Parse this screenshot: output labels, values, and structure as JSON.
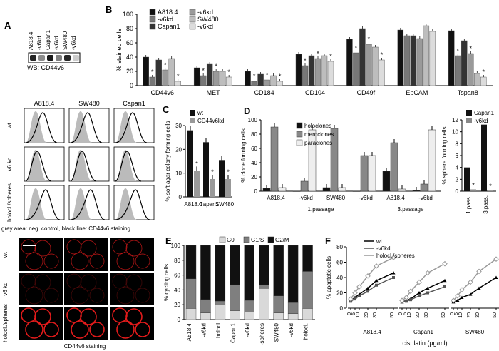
{
  "panel_labels": {
    "A": "A",
    "B": "B",
    "C": "C",
    "D": "D",
    "E": "E",
    "F": "F"
  },
  "panelA": {
    "lanes": [
      "A818.4",
      "-v6kd",
      "Capan1",
      "-v6kd",
      "SW480",
      "-v6kd"
    ],
    "caption": "WB: CD44v6",
    "band_intensity": [
      0.85,
      0.45,
      0.9,
      0.5,
      0.85,
      0.2
    ]
  },
  "flow": {
    "cols": [
      "A818.4",
      "SW480",
      "Capan1"
    ],
    "rows": [
      "wt",
      "v6 kd",
      "holocl./spheres"
    ],
    "caption": "grey area: neg. control, black line: CD44v6 staining"
  },
  "micro": {
    "rows": [
      "wt",
      "v6 kd",
      "holocl./spheres"
    ],
    "caption": "CD44v6 staining"
  },
  "chart_data": [
    {
      "id": "B",
      "type": "bar",
      "ylabel": "% stained cells",
      "ylim": [
        0,
        100
      ],
      "yticks": [
        0,
        20,
        40,
        60,
        80,
        100
      ],
      "categories": [
        "CD44v6",
        "MET",
        "CD184",
        "CD104",
        "CD49f",
        "EpCAM",
        "Tspan8"
      ],
      "series": [
        {
          "name": "A818.4",
          "color": "#111111",
          "values": [
            40,
            25,
            20,
            44,
            65,
            78,
            77
          ]
        },
        {
          "name": "-v6kd",
          "color": "#777777",
          "values": [
            12,
            14,
            6,
            28,
            46,
            70,
            42
          ]
        },
        {
          "name": "Capan1",
          "color": "#333333",
          "values": [
            36,
            30,
            16,
            42,
            80,
            70,
            63
          ]
        },
        {
          "name": "-v6kd",
          "color": "#9a9a9a",
          "values": [
            22,
            20,
            8,
            38,
            58,
            66,
            45
          ]
        },
        {
          "name": "SW480",
          "color": "#bdbdbd",
          "values": [
            38,
            20,
            14,
            42,
            54,
            84,
            17
          ]
        },
        {
          "name": "-v6kd",
          "color": "#dcdcdc",
          "values": [
            6,
            12,
            6,
            34,
            36,
            76,
            12
          ]
        }
      ],
      "stars": [
        [
          1,
          3,
          5
        ],
        [
          1,
          3,
          5
        ],
        [
          1,
          3,
          5
        ],
        [
          1,
          3,
          5
        ],
        [
          1,
          3,
          5
        ],
        [],
        [
          1,
          3,
          5
        ]
      ]
    },
    {
      "id": "C",
      "type": "bar",
      "ylabel": "% soft agar colony forming cells",
      "ylim": [
        0,
        30
      ],
      "yticks": [
        0,
        10,
        20,
        30
      ],
      "categories": [
        "A818.4",
        "Capan1",
        "SW480"
      ],
      "series": [
        {
          "name": "wt",
          "color": "#111111",
          "values": [
            28,
            23,
            15.5
          ]
        },
        {
          "name": "CD44v6kd",
          "color": "#999999",
          "values": [
            11,
            7.5,
            7.5
          ]
        }
      ]
    },
    {
      "id": "D",
      "type": "bar",
      "ylabel": "% clone forming cells",
      "ylim": [
        0,
        100
      ],
      "yticks": [
        0,
        20,
        40,
        60,
        80,
        100
      ],
      "categories": [
        "A818.4",
        "-v6kd",
        "SW480",
        "-v6kd",
        "A818.4",
        "-v6kd"
      ],
      "groups": [
        "1.passage",
        "3.passage"
      ],
      "series": [
        {
          "name": "holoclones",
          "color": "#111111",
          "values": [
            4,
            0,
            5,
            0,
            28,
            1
          ]
        },
        {
          "name": "meroclones",
          "color": "#888888",
          "values": [
            90,
            14,
            88,
            50,
            68,
            10
          ]
        },
        {
          "name": "paraclones",
          "color": "#eeeeee",
          "values": [
            5,
            86,
            5,
            50,
            3,
            86
          ]
        }
      ]
    },
    {
      "id": "D2",
      "type": "bar",
      "ylabel": "% sphere forming cells",
      "ylim": [
        0,
        12
      ],
      "yticks": [
        0,
        2,
        4,
        6,
        8,
        10,
        12
      ],
      "categories": [
        "1.pass.",
        "3.pass."
      ],
      "series": [
        {
          "name": "Capan1",
          "color": "#111111",
          "values": [
            4,
            11.2
          ]
        },
        {
          "name": "-v6kd",
          "color": "#888888",
          "values": [
            0.3,
            0.1
          ]
        }
      ]
    },
    {
      "id": "E",
      "type": "bar",
      "ylabel": "% cycling cells",
      "ylim": [
        0,
        100
      ],
      "yticks": [
        0,
        20,
        40,
        60,
        80,
        100
      ],
      "categories": [
        "A818.4",
        "-v6kd",
        "holocl",
        "Capan1",
        "-v6kd",
        "-spheres",
        "SW480",
        "-v6kd",
        "holocl."
      ],
      "series": [
        {
          "name": "G0",
          "color": "#d9d9d9",
          "values": [
            15,
            9,
            20,
            12,
            10,
            42,
            9,
            8,
            15
          ]
        },
        {
          "name": "G1/S",
          "color": "#7f7f7f",
          "values": [
            40,
            18,
            5,
            35,
            16,
            5,
            23,
            15,
            50
          ]
        },
        {
          "name": "G2/M",
          "color": "#111111",
          "values": [
            45,
            73,
            75,
            53,
            74,
            53,
            68,
            77,
            35
          ]
        }
      ]
    },
    {
      "id": "F",
      "type": "line",
      "ylabel": "% apoptotic cells",
      "xlabel": "cisplatin (µg/ml)",
      "ylim": [
        0,
        80
      ],
      "yticks": [
        0,
        20,
        40,
        60,
        80
      ],
      "groups": [
        "A818.4",
        "Capan1",
        "SW480"
      ],
      "x": [
        0,
        5,
        10,
        20,
        30,
        50
      ],
      "series": [
        {
          "name": "wt",
          "color": "#000000",
          "values": [
            [
              10,
              14,
              18,
              26,
              36,
              46
            ],
            [
              8,
              10,
              12,
              20,
              26,
              36
            ],
            [
              8,
              10,
              14,
              18,
              26,
              40
            ]
          ]
        },
        {
          "name": "-v6kd",
          "color": "#555555",
          "values": [
            [
              9,
              12,
              16,
              22,
              30,
              40
            ],
            [
              8,
              9,
              11,
              16,
              20,
              28
            ],
            null
          ]
        },
        {
          "name": "holocl./spheres",
          "color": "#999999",
          "values": [
            [
              12,
              20,
              28,
              42,
              55,
              66
            ],
            [
              10,
              14,
              22,
              34,
              46,
              58
            ],
            [
              10,
              16,
              24,
              34,
              48,
              64
            ]
          ]
        }
      ]
    }
  ]
}
